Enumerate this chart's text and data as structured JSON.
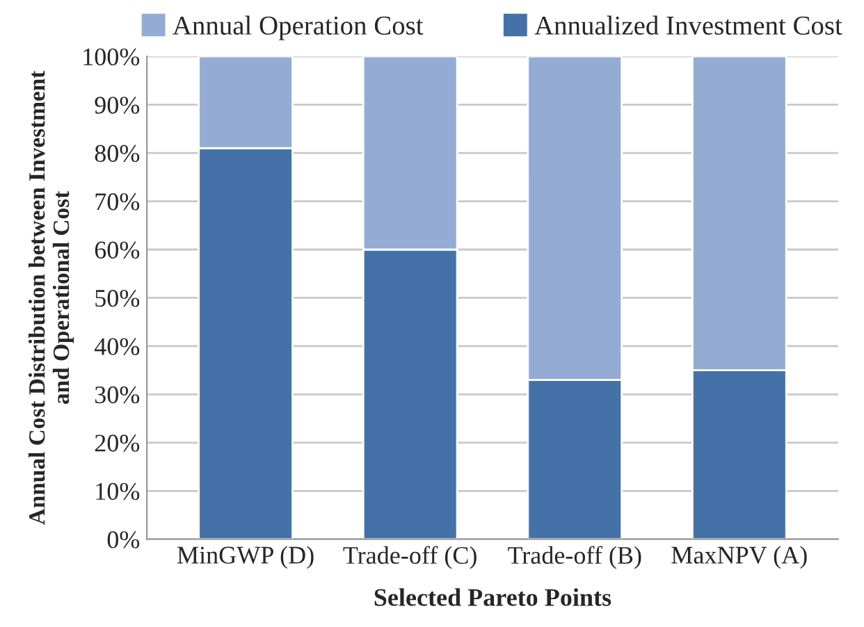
{
  "chart_data": {
    "type": "bar",
    "stacked": true,
    "xlabel": "Selected Pareto Points",
    "ylabel": "Annual Cost Distribution between Investment\nand Operational Cost",
    "categories": [
      "MinGWP (D)",
      "Trade-off (C)",
      "Trade-off (B)",
      "MaxNPV (A)"
    ],
    "series": [
      {
        "name": "Annualized Investment Cost",
        "color": "#4472a8",
        "values": [
          81,
          60,
          33,
          35
        ]
      },
      {
        "name": "Annual Operation Cost",
        "color": "#94abd4",
        "values": [
          19,
          40,
          67,
          65
        ]
      }
    ],
    "ylim": [
      0,
      100
    ],
    "yticks": [
      {
        "value": 0,
        "label": "0%"
      },
      {
        "value": 10,
        "label": "10%"
      },
      {
        "value": 20,
        "label": "20%"
      },
      {
        "value": 30,
        "label": "30%"
      },
      {
        "value": 40,
        "label": "40%"
      },
      {
        "value": 50,
        "label": "50%"
      },
      {
        "value": 60,
        "label": "60%"
      },
      {
        "value": 70,
        "label": "70%"
      },
      {
        "value": 80,
        "label": "80%"
      },
      {
        "value": 90,
        "label": "90%"
      },
      {
        "value": 100,
        "label": "100%"
      }
    ],
    "grid": "y",
    "legend": "top"
  }
}
